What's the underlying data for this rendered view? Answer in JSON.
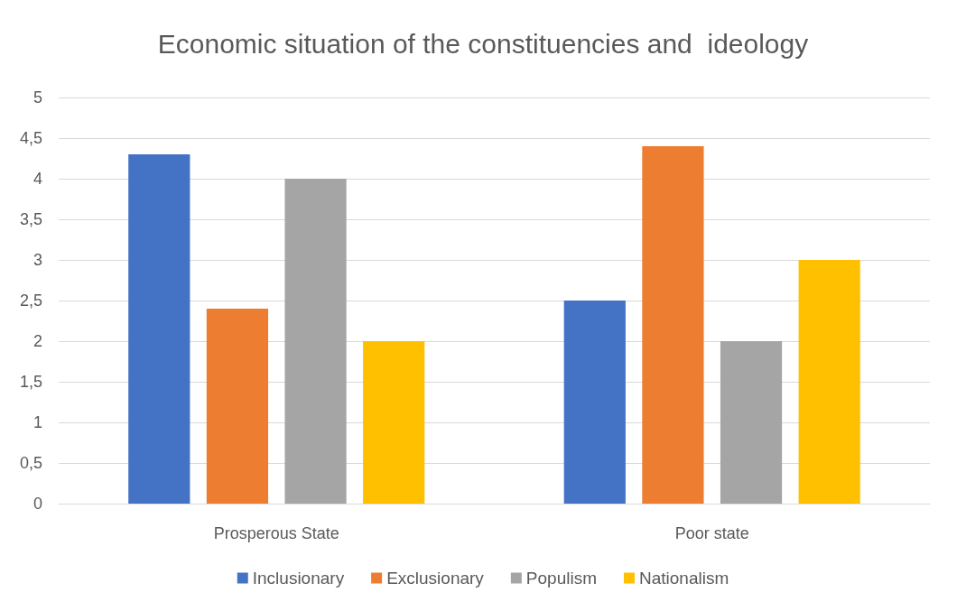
{
  "chart_data": {
    "type": "bar",
    "title": "Economic situation of the constituencies and  ideology",
    "categories": [
      "Prosperous State",
      "Poor state"
    ],
    "series": [
      {
        "name": "Inclusionary",
        "color": "#4472c4",
        "values": [
          4.3,
          2.5
        ]
      },
      {
        "name": "Exclusionary",
        "color": "#ed7d31",
        "values": [
          2.4,
          4.4
        ]
      },
      {
        "name": "Populism",
        "color": "#a5a5a5",
        "values": [
          4.0,
          2.0
        ]
      },
      {
        "name": "Nationalism",
        "color": "#ffc000",
        "values": [
          2.0,
          3.0
        ]
      }
    ],
    "ylim": [
      0,
      5
    ],
    "yticks": [
      0,
      {
        "value": 0.5,
        "label": "0,5"
      },
      1,
      {
        "value": 1.5,
        "label": "1,5"
      },
      2,
      {
        "value": 2.5,
        "label": "2,5"
      },
      3,
      {
        "value": 3.5,
        "label": "3,5"
      },
      4,
      {
        "value": 4.5,
        "label": "4,5"
      },
      5
    ],
    "grid": "y",
    "legend": "bottom"
  }
}
